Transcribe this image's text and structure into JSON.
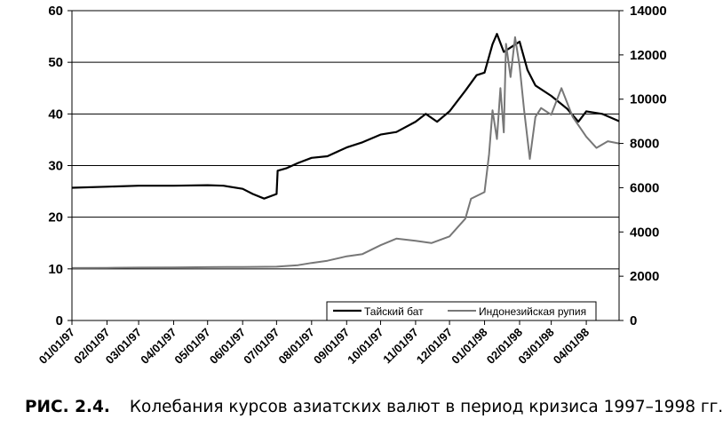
{
  "chart_data": {
    "type": "line",
    "y_left": {
      "ticks": [
        0,
        10,
        20,
        30,
        40,
        50,
        60
      ],
      "range": [
        0,
        60
      ]
    },
    "y_right": {
      "ticks": [
        0,
        2000,
        4000,
        6000,
        8000,
        10000,
        12000,
        14000
      ],
      "range": [
        0,
        14000
      ]
    },
    "x_range": [
      "1997-01-01",
      "1998-04-30"
    ],
    "x_ticks": [
      "01/01/97",
      "02/01/97",
      "03/01/97",
      "04/01/97",
      "05/01/97",
      "06/01/97",
      "07/01/97",
      "08/01/97",
      "09/01/97",
      "10/01/97",
      "11/01/97",
      "12/01/97",
      "01/01/98",
      "02/01/98",
      "03/01/98",
      "04/01/98"
    ],
    "grid": "horizontal",
    "legend_position": "bottom-right",
    "series": [
      {
        "name": "Тайский бат",
        "axis": "left",
        "color": "#000000",
        "points": [
          [
            "1997-01-01",
            25.7
          ],
          [
            "1997-02-01",
            25.9
          ],
          [
            "1997-03-01",
            26.1
          ],
          [
            "1997-04-01",
            26.1
          ],
          [
            "1997-05-01",
            26.2
          ],
          [
            "1997-05-15",
            26.1
          ],
          [
            "1997-06-01",
            25.5
          ],
          [
            "1997-06-10",
            24.5
          ],
          [
            "1997-06-20",
            23.6
          ],
          [
            "1997-07-01",
            24.5
          ],
          [
            "1997-07-02",
            29.0
          ],
          [
            "1997-07-10",
            29.5
          ],
          [
            "1997-07-20",
            30.5
          ],
          [
            "1997-08-01",
            31.5
          ],
          [
            "1997-08-15",
            31.8
          ],
          [
            "1997-09-01",
            33.5
          ],
          [
            "1997-09-15",
            34.5
          ],
          [
            "1997-10-01",
            36.0
          ],
          [
            "1997-10-15",
            36.5
          ],
          [
            "1997-11-01",
            38.5
          ],
          [
            "1997-11-10",
            40.0
          ],
          [
            "1997-11-20",
            38.5
          ],
          [
            "1997-12-01",
            40.5
          ],
          [
            "1997-12-15",
            44.5
          ],
          [
            "1997-12-25",
            47.5
          ],
          [
            "1998-01-01",
            48.0
          ],
          [
            "1998-01-08",
            53.5
          ],
          [
            "1998-01-12",
            55.5
          ],
          [
            "1998-01-18",
            52.0
          ],
          [
            "1998-01-25",
            53.0
          ],
          [
            "1998-02-01",
            54.0
          ],
          [
            "1998-02-08",
            48.5
          ],
          [
            "1998-02-15",
            45.5
          ],
          [
            "1998-03-01",
            43.5
          ],
          [
            "1998-03-15",
            41.0
          ],
          [
            "1998-03-25",
            38.5
          ],
          [
            "1998-04-01",
            40.5
          ],
          [
            "1998-04-15",
            40.0
          ],
          [
            "1998-04-30",
            38.6
          ]
        ]
      },
      {
        "name": "Индонезийская рупия",
        "axis": "right",
        "color": "#777777",
        "points": [
          [
            "1997-01-01",
            2370
          ],
          [
            "1997-02-01",
            2380
          ],
          [
            "1997-03-01",
            2390
          ],
          [
            "1997-04-01",
            2400
          ],
          [
            "1997-05-01",
            2410
          ],
          [
            "1997-06-01",
            2420
          ],
          [
            "1997-07-01",
            2430
          ],
          [
            "1997-07-20",
            2500
          ],
          [
            "1997-08-01",
            2600
          ],
          [
            "1997-08-15",
            2700
          ],
          [
            "1997-09-01",
            2900
          ],
          [
            "1997-09-15",
            3000
          ],
          [
            "1997-10-01",
            3400
          ],
          [
            "1997-10-15",
            3700
          ],
          [
            "1997-11-01",
            3600
          ],
          [
            "1997-11-15",
            3500
          ],
          [
            "1997-12-01",
            3800
          ],
          [
            "1997-12-15",
            4600
          ],
          [
            "1997-12-20",
            5500
          ],
          [
            "1998-01-01",
            5800
          ],
          [
            "1998-01-05",
            7500
          ],
          [
            "1998-01-08",
            9500
          ],
          [
            "1998-01-12",
            8200
          ],
          [
            "1998-01-15",
            10500
          ],
          [
            "1998-01-18",
            8500
          ],
          [
            "1998-01-20",
            12500
          ],
          [
            "1998-01-24",
            11000
          ],
          [
            "1998-01-28",
            12800
          ],
          [
            "1998-02-01",
            11500
          ],
          [
            "1998-02-05",
            9500
          ],
          [
            "1998-02-10",
            7300
          ],
          [
            "1998-02-15",
            9200
          ],
          [
            "1998-02-20",
            9600
          ],
          [
            "1998-03-01",
            9300
          ],
          [
            "1998-03-10",
            10500
          ],
          [
            "1998-03-20",
            9200
          ],
          [
            "1998-04-01",
            8300
          ],
          [
            "1998-04-10",
            7800
          ],
          [
            "1998-04-20",
            8100
          ],
          [
            "1998-04-30",
            8000
          ]
        ]
      }
    ]
  },
  "caption": {
    "figure": "РИС. 2.4.",
    "text": "Колебания курсов азиатских валют в период кризиса 1997–1998 гг."
  }
}
